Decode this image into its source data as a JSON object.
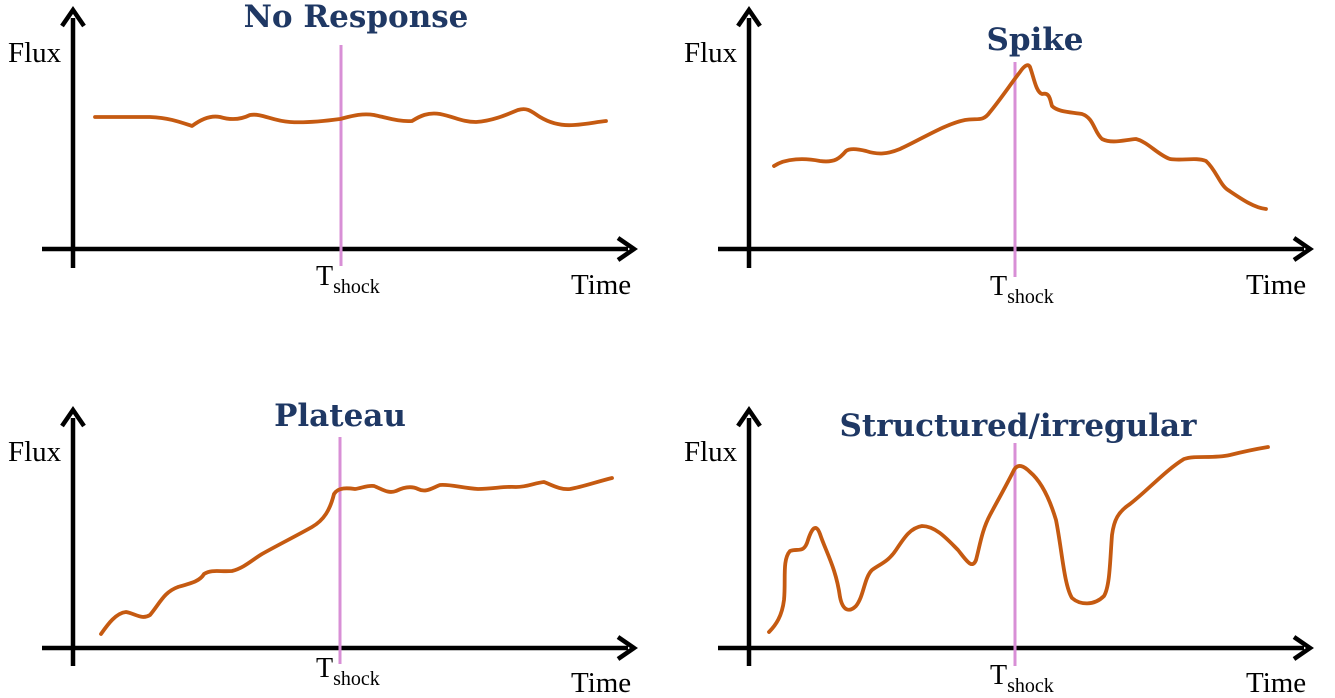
{
  "colors": {
    "curve": "#c55a11",
    "marker": "#d88fd6",
    "title": "#1f3864",
    "axis": "#000000"
  },
  "panels": [
    {
      "title": "No Response",
      "y_label": "Flux",
      "x_label": "Time",
      "marker_main": "T",
      "marker_sub": "shock",
      "pattern": "flat"
    },
    {
      "title": "Spike",
      "y_label": "Flux",
      "x_label": "Time",
      "marker_main": "T",
      "marker_sub": "shock",
      "pattern": "spike"
    },
    {
      "title": "Plateau",
      "y_label": "Flux",
      "x_label": "Time",
      "marker_main": "T",
      "marker_sub": "shock",
      "pattern": "plateau"
    },
    {
      "title": "Structured/irregular",
      "y_label": "Flux",
      "x_label": "Time",
      "marker_main": "T",
      "marker_sub": "shock",
      "pattern": "irregular"
    }
  ]
}
